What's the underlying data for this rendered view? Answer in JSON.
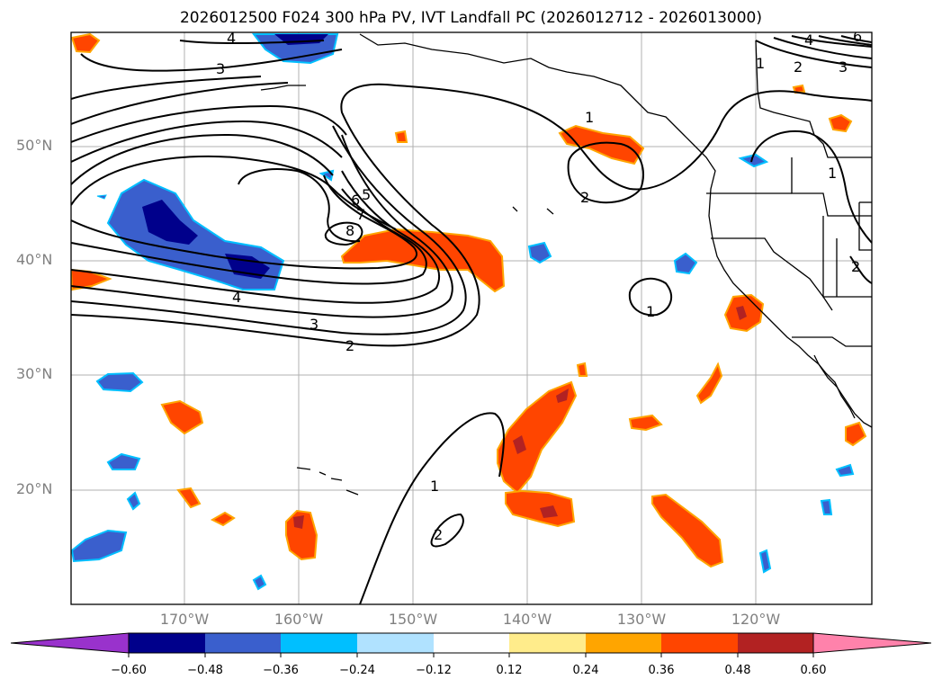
{
  "title": "2026012500 F024 300 hPa PV, IVT Landfall PC (2026012712 - 2026013000)",
  "lat_labels": [
    "50°N",
    "40°N",
    "30°N",
    "20°N"
  ],
  "lon_labels": [
    "170°W",
    "160°W",
    "150°W",
    "140°W",
    "130°W",
    "120°W"
  ],
  "contour_labels": [
    "4",
    "3",
    "1",
    "2",
    "3",
    "4",
    "6",
    "1",
    "2",
    "6",
    "5",
    "7",
    "8",
    "4",
    "3",
    "2",
    "1",
    "1",
    "2",
    "1",
    "2"
  ],
  "colorbar": {
    "ticks": [
      "−0.60",
      "−0.48",
      "−0.36",
      "−0.24",
      "−0.12",
      "0.12",
      "0.24",
      "0.36",
      "0.48",
      "0.60"
    ],
    "colors": [
      "#9932cc",
      "#00008b",
      "#3a5fcd",
      "#00bfff",
      "#b0e2ff",
      "#ffffff",
      "#ffec8b",
      "#ffa500",
      "#ff4500",
      "#b22222",
      "#ff82ab"
    ]
  },
  "colors": {
    "ocean": "#ffffff",
    "land_outline": "#000000",
    "gridline": "#b0b0b0",
    "tick_label": "#808080"
  }
}
